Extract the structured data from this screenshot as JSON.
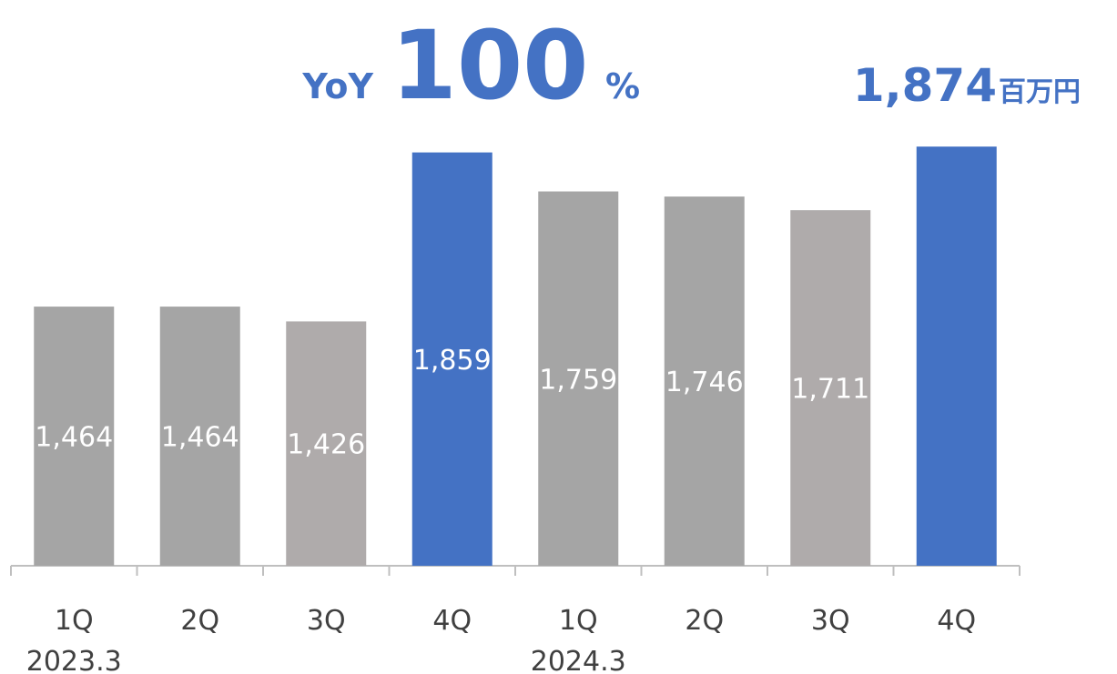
{
  "chart_data": {
    "type": "bar",
    "categories": [
      "1Q",
      "2Q",
      "3Q",
      "4Q",
      "1Q",
      "2Q",
      "3Q",
      "4Q"
    ],
    "category_groups": [
      "2023.3",
      null,
      null,
      null,
      "2024.3",
      null,
      null,
      null
    ],
    "values": [
      1464,
      1464,
      1426,
      1859,
      1759,
      1746,
      1711,
      1874
    ],
    "value_labels": [
      "1,464",
      "1,464",
      "1,426",
      "1,859",
      "1,759",
      "1,746",
      "1,711",
      "1,874"
    ],
    "colors": [
      "#a5a5a5",
      "#a5a5a5",
      "#afabab",
      "#4472c4",
      "#a5a5a5",
      "#a5a5a5",
      "#afabab",
      "#4472c4"
    ],
    "ylim": [
      800,
      1900
    ],
    "yoy": {
      "label": "YoY",
      "value": 100,
      "unit": "%"
    },
    "latest_unit": "百万円"
  }
}
